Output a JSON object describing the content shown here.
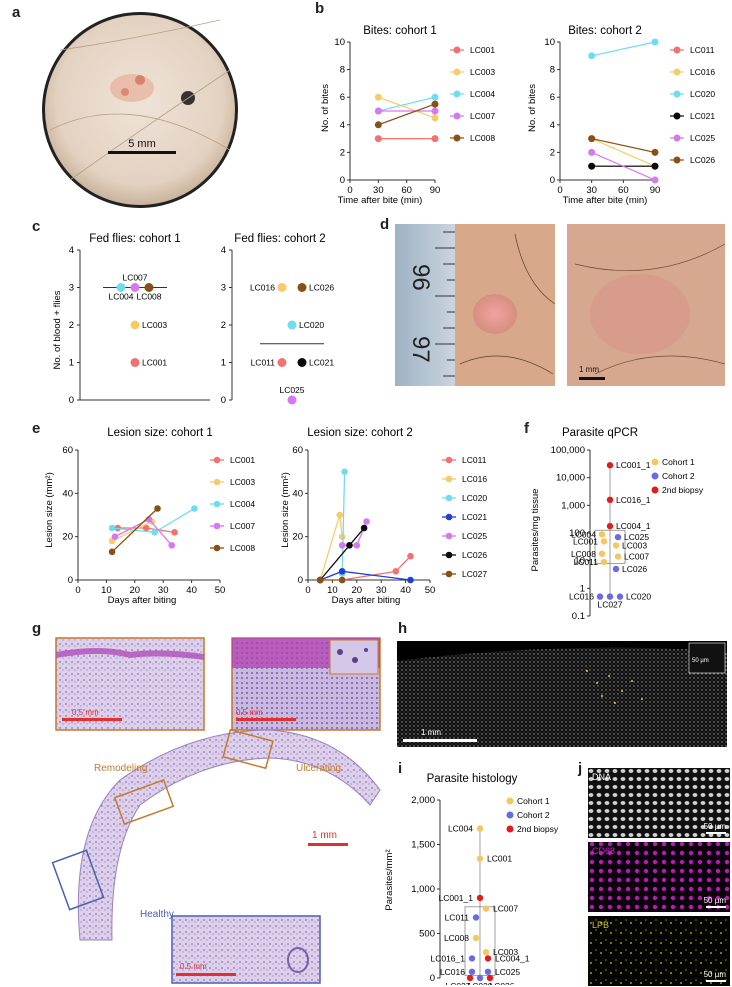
{
  "panel_letters": [
    "a",
    "b",
    "c",
    "d",
    "e",
    "f",
    "g",
    "h",
    "i",
    "j"
  ],
  "colors": {
    "LC001": "#f07272",
    "LC003": "#f6cc6a",
    "LC004": "#6fdcf0",
    "LC007": "#d777f2",
    "LC008": "#8a4f12",
    "LC011": "#f07272",
    "LC016": "#f6cc6a",
    "LC020": "#6fdcf0",
    "LC021": "#0a0a0a",
    "LC025": "#d777f2",
    "LC026": "#8a4f12",
    "LC027": "#8a4f12",
    "LC021e": "#1f3fd8",
    "LC026e": "#0a0a0a",
    "cohort1": "#f6c760",
    "cohort2": "#6a6ae8",
    "biopsy2": "#e01c1c"
  },
  "panel_a": {
    "scalebar": "5 mm"
  },
  "panel_d": {
    "ruler": [
      "96",
      "97"
    ],
    "scalebar": "1 mm"
  },
  "panel_g": {
    "top_left_scale": "0.5 mm",
    "top_right_scale": "0.5 mm",
    "main_scale": "1 mm",
    "bottom_scale": "0.5 mm",
    "labels": {
      "remodeling": "Remodeling",
      "ulcerating": "Ulcerating",
      "healthy": "Healthy"
    }
  },
  "panel_h": {
    "main_scale": "1 mm",
    "inset_scale": "50 µm"
  },
  "panel_j": {
    "channels": [
      "DNA",
      "CD68",
      "LPB"
    ],
    "scale": "50 µm"
  },
  "chart_data": [
    {
      "id": "b1",
      "type": "line",
      "title": "Bites: cohort 1",
      "xlabel": "Time after bite (min)",
      "ylabel": "No. of bites",
      "x": [
        30,
        90
      ],
      "xticks": [
        "0",
        "30",
        "60",
        "90"
      ],
      "yticks": [
        "0",
        "2",
        "4",
        "6",
        "8",
        "10"
      ],
      "ylim": [
        0,
        10
      ],
      "series": [
        {
          "name": "LC001",
          "values": [
            3,
            3
          ]
        },
        {
          "name": "LC003",
          "values": [
            6,
            4.5
          ]
        },
        {
          "name": "LC004",
          "values": [
            5,
            6
          ]
        },
        {
          "name": "LC007",
          "values": [
            5,
            5
          ]
        },
        {
          "name": "LC008",
          "values": [
            4,
            5.5
          ]
        }
      ]
    },
    {
      "id": "b2",
      "type": "line",
      "title": "Bites: cohort 2",
      "xlabel": "Time after bite (min)",
      "ylabel": "No. of bites",
      "x": [
        30,
        90
      ],
      "xticks": [
        "0",
        "30",
        "60",
        "90"
      ],
      "yticks": [
        "0",
        "2",
        "4",
        "6",
        "8",
        "10"
      ],
      "ylim": [
        0,
        10
      ],
      "series": [
        {
          "name": "LC011",
          "values": [
            1,
            1
          ]
        },
        {
          "name": "LC016",
          "values": [
            3,
            1
          ]
        },
        {
          "name": "LC020",
          "values": [
            9,
            10
          ]
        },
        {
          "name": "LC021",
          "values": [
            1,
            1
          ]
        },
        {
          "name": "LC025",
          "values": [
            2,
            0
          ]
        },
        {
          "name": "LC026",
          "values": [
            3,
            2
          ]
        }
      ]
    },
    {
      "id": "c1",
      "type": "scatter",
      "title": "Fed flies: cohort 1",
      "ylabel": "No. of blood + flies",
      "yticks": [
        "0",
        "1",
        "2",
        "3",
        "4"
      ],
      "ylim": [
        0,
        4
      ],
      "points": [
        {
          "name": "LC004",
          "value": 3
        },
        {
          "name": "LC007",
          "value": 3
        },
        {
          "name": "LC008",
          "value": 3
        },
        {
          "name": "LC003",
          "value": 2
        },
        {
          "name": "LC001",
          "value": 1
        }
      ],
      "median": 3
    },
    {
      "id": "c2",
      "type": "scatter",
      "title": "Fed flies: cohort 2",
      "yticks": [
        "0",
        "1",
        "2",
        "3",
        "4"
      ],
      "ylim": [
        0,
        4
      ],
      "points": [
        {
          "name": "LC016",
          "value": 3
        },
        {
          "name": "LC026",
          "value": 3
        },
        {
          "name": "LC020",
          "value": 2
        },
        {
          "name": "LC011",
          "value": 1
        },
        {
          "name": "LC021",
          "value": 1
        },
        {
          "name": "LC025",
          "value": 0
        }
      ],
      "median": 1.5
    },
    {
      "id": "e1",
      "type": "line",
      "title": "Lesion size: cohort 1",
      "xlabel": "Days after biting",
      "ylabel": "Lesion size (mm²)",
      "xticks": [
        "0",
        "10",
        "20",
        "30",
        "40",
        "50"
      ],
      "yticks": [
        "0",
        "20",
        "40",
        "60"
      ],
      "xlim": [
        0,
        50
      ],
      "ylim": [
        0,
        60
      ],
      "series": [
        {
          "name": "LC001",
          "x": [
            14,
            24,
            34
          ],
          "values": [
            24,
            24,
            22
          ]
        },
        {
          "name": "LC003",
          "x": [
            12,
            26
          ],
          "values": [
            18,
            27
          ]
        },
        {
          "name": "LC004",
          "x": [
            12,
            27,
            41
          ],
          "values": [
            24,
            22,
            33
          ]
        },
        {
          "name": "LC007",
          "x": [
            13,
            25,
            33
          ],
          "values": [
            20,
            28,
            16
          ]
        },
        {
          "name": "LC008",
          "x": [
            12,
            28
          ],
          "values": [
            13,
            33
          ]
        }
      ]
    },
    {
      "id": "e2",
      "type": "line",
      "title": "Lesion size: cohort 2",
      "xlabel": "Days after biting",
      "yticks": [
        "0",
        "20",
        "40",
        "60"
      ],
      "xticks": [
        "0",
        "10",
        "20",
        "30",
        "40",
        "50"
      ],
      "xlim": [
        0,
        50
      ],
      "ylim": [
        0,
        60
      ],
      "series": [
        {
          "name": "LC011",
          "x": [
            14,
            36,
            42
          ],
          "values": [
            0,
            4,
            11
          ]
        },
        {
          "name": "LC016",
          "x": [
            5,
            13,
            14
          ],
          "values": [
            0,
            30,
            20
          ]
        },
        {
          "name": "LC020",
          "x": [
            14,
            15
          ],
          "values": [
            3,
            50
          ]
        },
        {
          "name": "LC021",
          "x": [
            5,
            14,
            42
          ],
          "values": [
            0,
            4,
            0
          ]
        },
        {
          "name": "LC025",
          "x": [
            14,
            20,
            24
          ],
          "values": [
            16,
            16,
            27
          ]
        },
        {
          "name": "LC026",
          "x": [
            5,
            17,
            23
          ],
          "values": [
            0,
            16,
            24
          ]
        },
        {
          "name": "LC027",
          "x": [
            5,
            14
          ],
          "values": [
            0,
            0
          ]
        }
      ]
    },
    {
      "id": "f",
      "type": "scatter",
      "title": "Parasite qPCR",
      "ylabel": "Parasites/mg tissue",
      "scale": "log",
      "yticks": [
        "0.1",
        "1",
        "10",
        "100",
        "1,000",
        "10,000",
        "100,000"
      ],
      "legend": [
        "Cohort 1",
        "Cohort 2",
        "2nd biopsy"
      ],
      "labels": [
        "LC001_1",
        "LC016_1",
        "LC004_1",
        "LC004",
        "LC025",
        "LC001",
        "LC003",
        "LC008",
        "LC007",
        "LC011",
        "LC026",
        "LC016",
        "LC020",
        "LC027"
      ]
    },
    {
      "id": "i",
      "type": "scatter",
      "title": "Parasite histology",
      "ylabel": "Parasites/mm²",
      "yticks": [
        "0",
        "500",
        "1,000",
        "1,500",
        "2,000"
      ],
      "ylim": [
        0,
        2000
      ],
      "legend": [
        "Cohort 1",
        "Cohort 2",
        "2nd biopsy"
      ],
      "labels": [
        "LC004",
        "LC001",
        "LC001_1",
        "LC007",
        "LC011",
        "LC008",
        "LC003",
        "LC016_1",
        "LC004_1",
        "LC016",
        "LC025",
        "LC027",
        "LC020",
        "LC026"
      ]
    }
  ]
}
